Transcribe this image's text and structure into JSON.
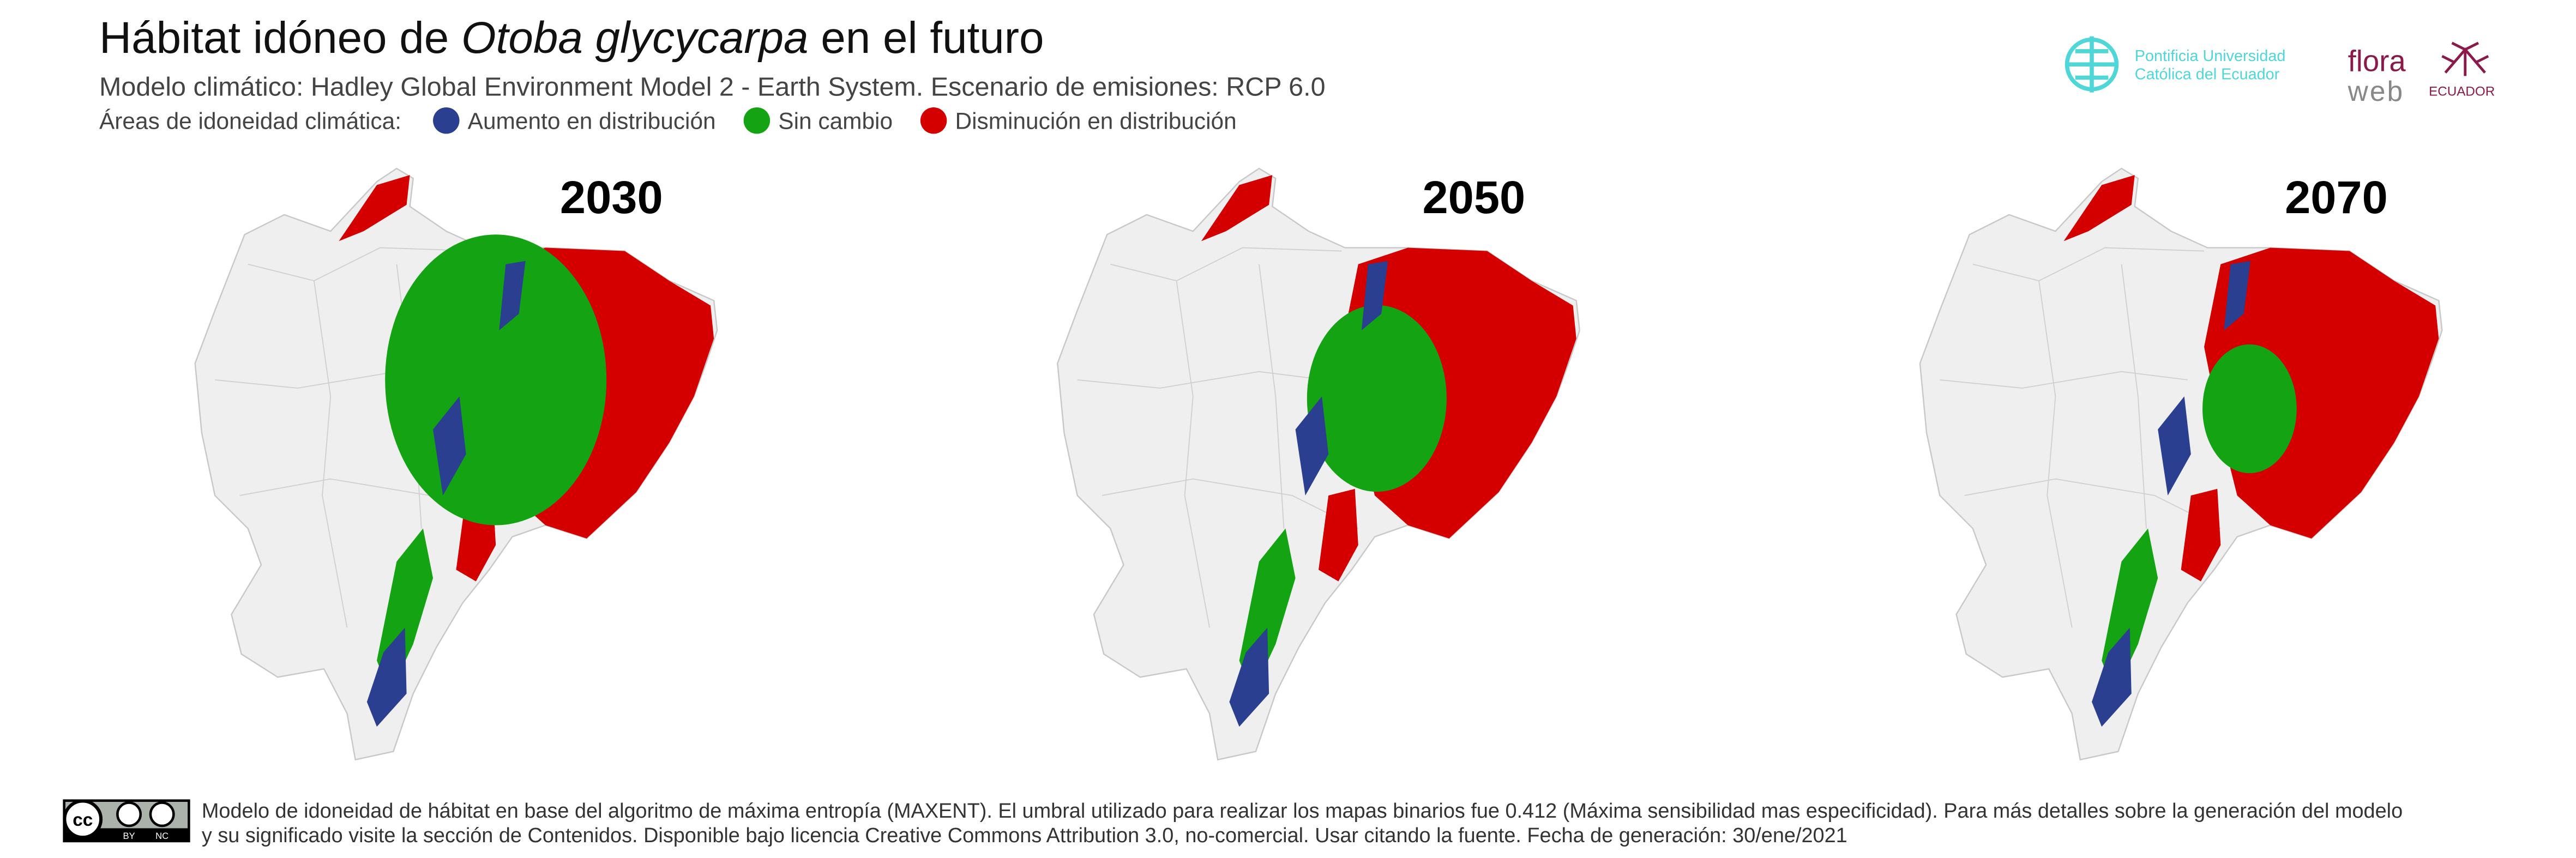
{
  "header": {
    "title": [
      "Hábitat idóneo de ",
      "Otoba glycycarpa",
      " en el futuro"
    ],
    "subtitle": "Modelo climático: Hadley Global Environment Model 2 - Earth System. Escenario de emisiones: RCP 6.0",
    "legend": {
      "label": "Áreas de idoneidad climática:",
      "items": [
        {
          "label": "Aumento en distribución",
          "color": "#2a3f8f"
        },
        {
          "label": "Sin cambio",
          "color": "#13a313"
        },
        {
          "label": "Disminución en distribución",
          "color": "#d40000"
        }
      ]
    }
  },
  "maps": [
    {
      "year": "2030"
    },
    {
      "year": "2050"
    },
    {
      "year": "2070"
    }
  ],
  "logos": {
    "puce": [
      "Pontificia Universidad",
      "Católica del Ecuador"
    ],
    "flora": [
      "flora",
      "web",
      "ECUADOR"
    ]
  },
  "footer": {
    "license": [
      "BY",
      "NC"
    ],
    "text": [
      "Modelo de idoneidad de hábitat en base del algoritmo de máxima entropía (MAXENT). El umbral utilizado para realizar los mapas binarios fue 0.412 (Máxima sensibilidad mas especificidad). Para más detalles sobre la generación del modelo",
      "y su significado visite la sección de Contenidos. Disponible bajo licencia Creative Commons Attribution 3.0, no-comercial. Usar citando la fuente. Fecha de generación: 30/ene/2021"
    ]
  }
}
